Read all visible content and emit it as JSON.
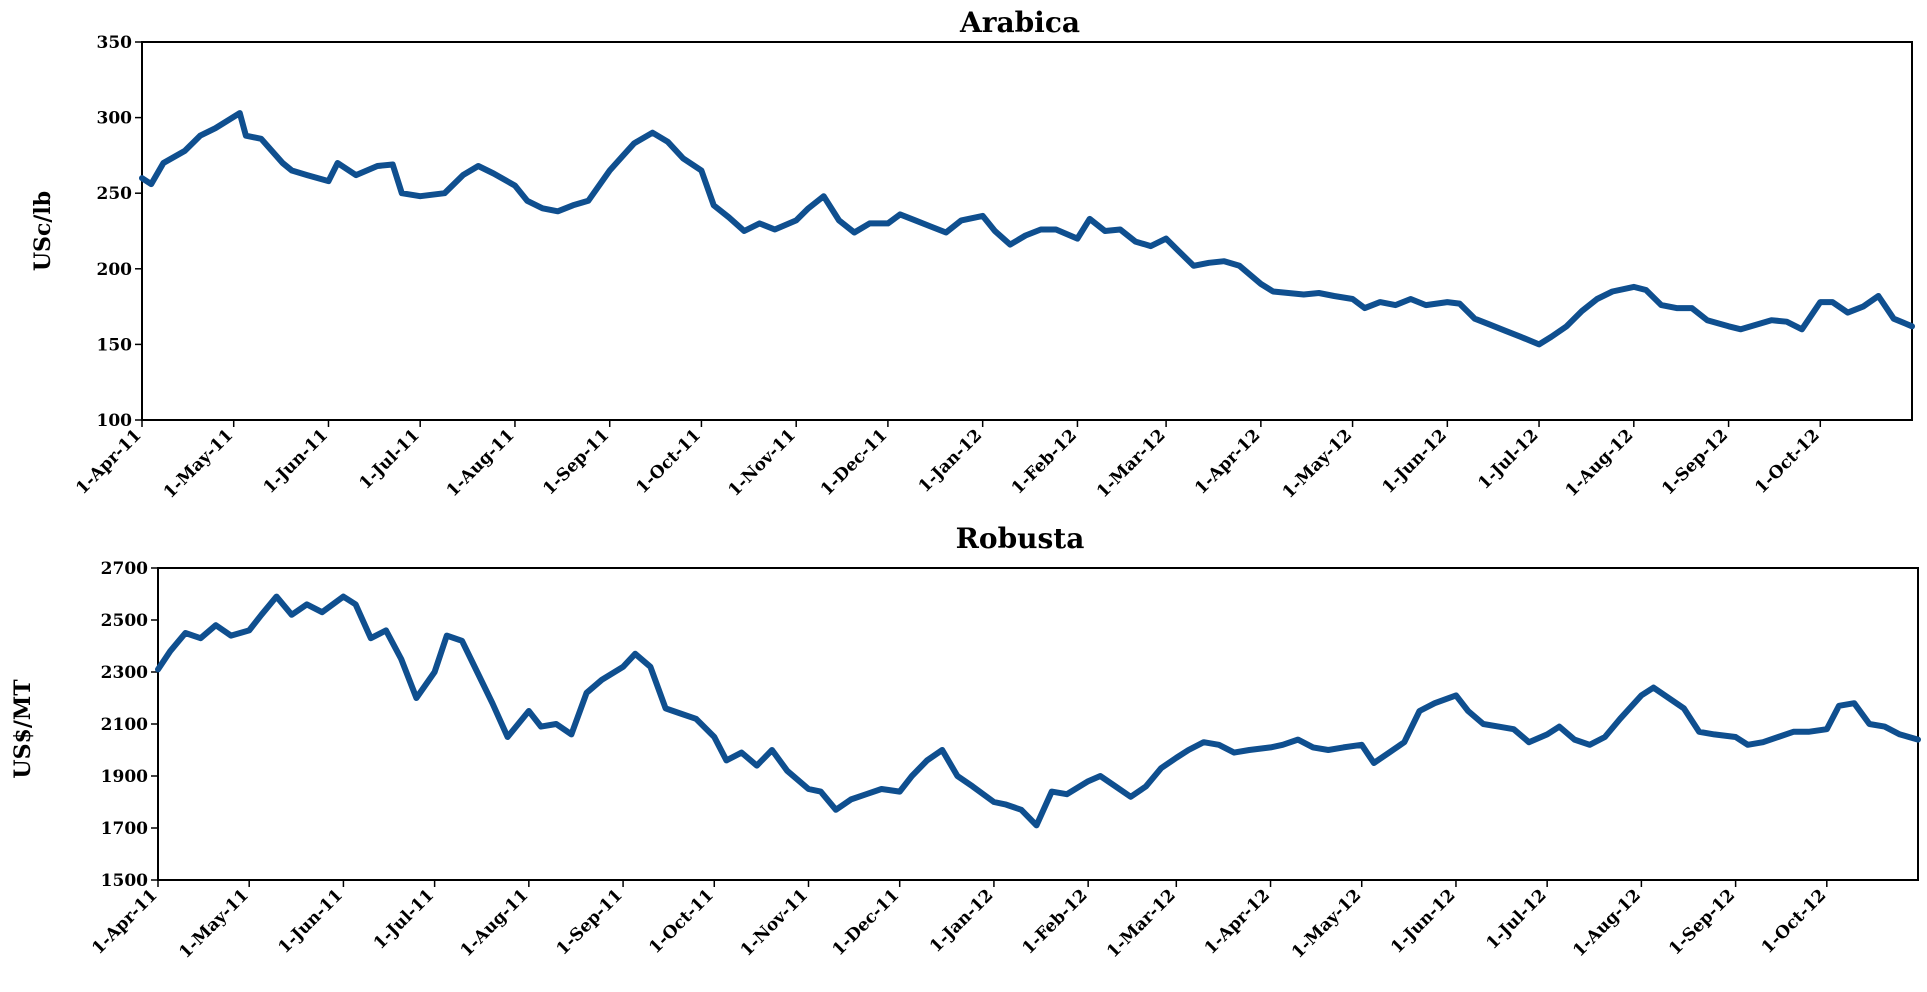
{
  "chart_data": [
    {
      "type": "line",
      "title": "Arabica",
      "xlabel": "",
      "ylabel": "USc/lb",
      "ylim": [
        100,
        350
      ],
      "yticks": [
        100,
        150,
        200,
        250,
        300,
        350
      ],
      "ytick_labels": [
        "100",
        "150",
        "200",
        "250",
        "300",
        "350"
      ],
      "x_range": [
        "2011-04-01",
        "2012-10-31"
      ],
      "xtick_labels": [
        "1-Apr-11",
        "1-May-11",
        "1-Jun-11",
        "1-Jul-11",
        "1-Aug-11",
        "1-Sep-11",
        "1-Oct-11",
        "1-Nov-11",
        "1-Dec-11",
        "1-Jan-12",
        "1-Feb-12",
        "1-Mar-12",
        "1-Apr-12",
        "1-May-12",
        "1-Jun-12",
        "1-Jul-12",
        "1-Aug-12",
        "1-Sep-12",
        "1-Oct-12"
      ],
      "grid": false,
      "series": [
        {
          "color": "#0F4F8F",
          "x": [
            "2011-04-01",
            "2011-04-04",
            "2011-04-08",
            "2011-04-15",
            "2011-04-20",
            "2011-04-25",
            "2011-05-03",
            "2011-05-05",
            "2011-05-10",
            "2011-05-17",
            "2011-05-20",
            "2011-05-25",
            "2011-06-01",
            "2011-06-04",
            "2011-06-10",
            "2011-06-17",
            "2011-06-22",
            "2011-06-25",
            "2011-07-01",
            "2011-07-09",
            "2011-07-15",
            "2011-07-20",
            "2011-07-25",
            "2011-08-01",
            "2011-08-05",
            "2011-08-10",
            "2011-08-15",
            "2011-08-20",
            "2011-08-25",
            "2011-09-01",
            "2011-09-05",
            "2011-09-09",
            "2011-09-15",
            "2011-09-20",
            "2011-09-25",
            "2011-10-01",
            "2011-10-05",
            "2011-10-10",
            "2011-10-15",
            "2011-10-20",
            "2011-10-25",
            "2011-11-01",
            "2011-11-05",
            "2011-11-10",
            "2011-11-15",
            "2011-11-20",
            "2011-11-25",
            "2011-12-01",
            "2011-12-05",
            "2011-12-10",
            "2011-12-15",
            "2011-12-20",
            "2011-12-25",
            "2012-01-01",
            "2012-01-05",
            "2012-01-10",
            "2012-01-15",
            "2012-01-20",
            "2012-01-25",
            "2012-02-01",
            "2012-02-05",
            "2012-02-10",
            "2012-02-15",
            "2012-02-20",
            "2012-02-25",
            "2012-03-01",
            "2012-03-05",
            "2012-03-10",
            "2012-03-15",
            "2012-03-20",
            "2012-03-25",
            "2012-04-01",
            "2012-04-05",
            "2012-04-10",
            "2012-04-15",
            "2012-04-20",
            "2012-04-25",
            "2012-05-01",
            "2012-05-05",
            "2012-05-10",
            "2012-05-15",
            "2012-05-20",
            "2012-05-25",
            "2012-06-01",
            "2012-06-05",
            "2012-06-10",
            "2012-06-15",
            "2012-06-20",
            "2012-06-25",
            "2012-07-01",
            "2012-07-05",
            "2012-07-10",
            "2012-07-15",
            "2012-07-20",
            "2012-07-25",
            "2012-08-01",
            "2012-08-05",
            "2012-08-10",
            "2012-08-15",
            "2012-08-20",
            "2012-08-25",
            "2012-09-01",
            "2012-09-05",
            "2012-09-10",
            "2012-09-15",
            "2012-09-20",
            "2012-09-25",
            "2012-10-01",
            "2012-10-05",
            "2012-10-10",
            "2012-10-15",
            "2012-10-20",
            "2012-10-25",
            "2012-10-31"
          ],
          "values": [
            260,
            256,
            270,
            278,
            288,
            293,
            303,
            288,
            286,
            270,
            265,
            262,
            258,
            270,
            262,
            268,
            269,
            250,
            248,
            250,
            262,
            268,
            263,
            255,
            245,
            240,
            238,
            242,
            245,
            265,
            274,
            283,
            290,
            284,
            273,
            265,
            242,
            234,
            225,
            230,
            226,
            232,
            240,
            248,
            232,
            224,
            230,
            230,
            236,
            232,
            228,
            224,
            232,
            235,
            225,
            216,
            222,
            226,
            226,
            220,
            233,
            225,
            226,
            218,
            215,
            220,
            212,
            202,
            204,
            205,
            202,
            190,
            185,
            184,
            183,
            184,
            182,
            180,
            174,
            178,
            176,
            180,
            176,
            178,
            177,
            167,
            163,
            159,
            155,
            150,
            155,
            162,
            172,
            180,
            185,
            188,
            186,
            176,
            174,
            174,
            166,
            162,
            160,
            163,
            166,
            165,
            160,
            178,
            178,
            171,
            175,
            182,
            167,
            162
          ]
        }
      ]
    },
    {
      "type": "line",
      "title": "Robusta",
      "xlabel": "",
      "ylabel": "US$/MT",
      "ylim": [
        1500,
        2700
      ],
      "yticks": [
        1500,
        1700,
        1900,
        2100,
        2300,
        2500,
        2700
      ],
      "ytick_labels": [
        "1500",
        "1700",
        "1900",
        "2100",
        "2300",
        "2500",
        "2700"
      ],
      "x_range": [
        "2011-04-01",
        "2012-10-31"
      ],
      "xtick_labels": [
        "1-Apr-11",
        "1-May-11",
        "1-Jun-11",
        "1-Jul-11",
        "1-Aug-11",
        "1-Sep-11",
        "1-Oct-11",
        "1-Nov-11",
        "1-Dec-11",
        "1-Jan-12",
        "1-Feb-12",
        "1-Mar-12",
        "1-Apr-12",
        "1-May-12",
        "1-Jun-12",
        "1-Jul-12",
        "1-Aug-12",
        "1-Sep-12",
        "1-Oct-12"
      ],
      "grid": false,
      "series": [
        {
          "color": "#0F4F8F",
          "x": [
            "2011-04-01",
            "2011-04-05",
            "2011-04-10",
            "2011-04-15",
            "2011-04-20",
            "2011-04-25",
            "2011-05-01",
            "2011-05-05",
            "2011-05-10",
            "2011-05-15",
            "2011-05-20",
            "2011-05-25",
            "2011-06-01",
            "2011-06-05",
            "2011-06-10",
            "2011-06-15",
            "2011-06-20",
            "2011-06-25",
            "2011-07-01",
            "2011-07-05",
            "2011-07-10",
            "2011-07-15",
            "2011-07-20",
            "2011-07-25",
            "2011-08-01",
            "2011-08-05",
            "2011-08-10",
            "2011-08-15",
            "2011-08-20",
            "2011-08-25",
            "2011-09-01",
            "2011-09-05",
            "2011-09-10",
            "2011-09-15",
            "2011-09-20",
            "2011-09-25",
            "2011-10-01",
            "2011-10-05",
            "2011-10-10",
            "2011-10-15",
            "2011-10-20",
            "2011-10-25",
            "2011-11-01",
            "2011-11-05",
            "2011-11-10",
            "2011-11-15",
            "2011-11-20",
            "2011-11-25",
            "2011-12-01",
            "2011-12-05",
            "2011-12-10",
            "2011-12-15",
            "2011-12-20",
            "2011-12-25",
            "2012-01-01",
            "2012-01-05",
            "2012-01-10",
            "2012-01-15",
            "2012-01-20",
            "2012-01-25",
            "2012-02-01",
            "2012-02-05",
            "2012-02-10",
            "2012-02-15",
            "2012-02-20",
            "2012-02-25",
            "2012-03-01",
            "2012-03-05",
            "2012-03-10",
            "2012-03-15",
            "2012-03-20",
            "2012-03-25",
            "2012-04-01",
            "2012-04-05",
            "2012-04-10",
            "2012-04-15",
            "2012-04-20",
            "2012-04-25",
            "2012-05-01",
            "2012-05-05",
            "2012-05-10",
            "2012-05-15",
            "2012-05-20",
            "2012-05-25",
            "2012-06-01",
            "2012-06-05",
            "2012-06-10",
            "2012-06-15",
            "2012-06-20",
            "2012-06-25",
            "2012-07-01",
            "2012-07-05",
            "2012-07-10",
            "2012-07-15",
            "2012-07-20",
            "2012-07-25",
            "2012-08-01",
            "2012-08-05",
            "2012-08-10",
            "2012-08-15",
            "2012-08-20",
            "2012-08-25",
            "2012-09-01",
            "2012-09-05",
            "2012-09-10",
            "2012-09-15",
            "2012-09-20",
            "2012-09-25",
            "2012-10-01",
            "2012-10-05",
            "2012-10-10",
            "2012-10-15",
            "2012-10-20",
            "2012-10-25",
            "2012-10-31"
          ],
          "values": [
            2310,
            2380,
            2450,
            2430,
            2480,
            2440,
            2460,
            2520,
            2590,
            2520,
            2560,
            2530,
            2590,
            2560,
            2430,
            2460,
            2350,
            2200,
            2300,
            2440,
            2420,
            2300,
            2180,
            2050,
            2150,
            2090,
            2100,
            2060,
            2220,
            2270,
            2320,
            2370,
            2320,
            2160,
            2140,
            2120,
            2050,
            1960,
            1990,
            1940,
            2000,
            1920,
            1850,
            1840,
            1770,
            1810,
            1830,
            1850,
            1840,
            1900,
            1960,
            2000,
            1900,
            1860,
            1800,
            1790,
            1770,
            1710,
            1840,
            1830,
            1880,
            1900,
            1860,
            1820,
            1860,
            1930,
            1970,
            2000,
            2030,
            2020,
            1990,
            2000,
            2010,
            2020,
            2040,
            2010,
            2000,
            2010,
            2020,
            1950,
            1990,
            2030,
            2150,
            2180,
            2210,
            2150,
            2100,
            2090,
            2080,
            2030,
            2060,
            2090,
            2040,
            2020,
            2050,
            2120,
            2210,
            2240,
            2200,
            2160,
            2070,
            2060,
            2050,
            2020,
            2030,
            2050,
            2070,
            2070,
            2080,
            2170,
            2180,
            2100,
            2090,
            2060,
            2040
          ]
        }
      ]
    }
  ]
}
